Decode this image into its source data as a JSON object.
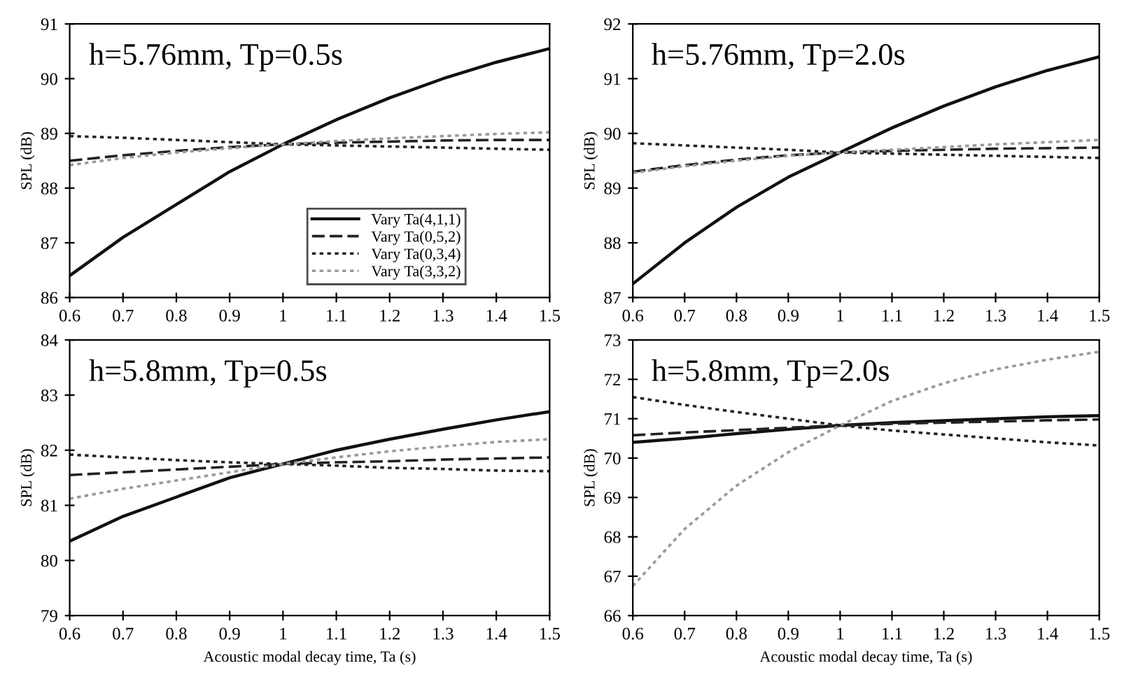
{
  "chart_data": [
    {
      "type": "line",
      "title": "h=5.76mm, Tp=0.5s",
      "ylabel": "SPL (dB)",
      "x": [
        0.6,
        0.7,
        0.8,
        0.9,
        1.0,
        1.1,
        1.2,
        1.3,
        1.4,
        1.5
      ],
      "xlim": [
        0.6,
        1.5
      ],
      "xticks": [
        0.6,
        0.7,
        0.8,
        0.9,
        1,
        1.1,
        1.2,
        1.3,
        1.4,
        1.5
      ],
      "ylim": [
        86,
        91
      ],
      "yticks": [
        86,
        87,
        88,
        89,
        90,
        91
      ],
      "grid": false,
      "legend": "bottom",
      "series": [
        {
          "name": "Vary Ta(4,1,1)",
          "color": "#111111",
          "line_style": "solid",
          "values": [
            86.4,
            87.1,
            87.7,
            88.3,
            88.8,
            89.25,
            89.65,
            90.0,
            90.3,
            90.55
          ]
        },
        {
          "name": "Vary Ta(0,5,2)",
          "color": "#222222",
          "line_style": "dashed",
          "values": [
            88.5,
            88.6,
            88.68,
            88.75,
            88.8,
            88.83,
            88.85,
            88.87,
            88.88,
            88.88
          ]
        },
        {
          "name": "Vary Ta(0,3,4)",
          "color": "#222222",
          "line_style": "dotted",
          "values": [
            88.95,
            88.92,
            88.88,
            88.84,
            88.8,
            88.78,
            88.76,
            88.74,
            88.72,
            88.7
          ]
        },
        {
          "name": "Vary Ta(3,3,2)",
          "color": "#999999",
          "line_style": "dotted",
          "values": [
            88.42,
            88.55,
            88.65,
            88.73,
            88.8,
            88.86,
            88.91,
            88.95,
            88.99,
            89.02
          ]
        }
      ]
    },
    {
      "type": "line",
      "title": "h=5.76mm, Tp=2.0s",
      "ylabel": "SPL (dB)",
      "x": [
        0.6,
        0.7,
        0.8,
        0.9,
        1.0,
        1.1,
        1.2,
        1.3,
        1.4,
        1.5
      ],
      "xlim": [
        0.6,
        1.5
      ],
      "xticks": [
        0.6,
        0.7,
        0.8,
        0.9,
        1,
        1.1,
        1.2,
        1.3,
        1.4,
        1.5
      ],
      "ylim": [
        87,
        92
      ],
      "yticks": [
        87,
        88,
        89,
        90,
        91,
        92
      ],
      "grid": false,
      "series": [
        {
          "color": "#111111",
          "line_style": "solid",
          "values": [
            87.25,
            88.0,
            88.65,
            89.2,
            89.65,
            90.1,
            90.5,
            90.85,
            91.15,
            91.4
          ]
        },
        {
          "color": "#222222",
          "line_style": "dashed",
          "values": [
            89.3,
            89.42,
            89.52,
            89.6,
            89.65,
            89.68,
            89.7,
            89.72,
            89.73,
            89.74
          ]
        },
        {
          "color": "#222222",
          "line_style": "dotted",
          "values": [
            89.82,
            89.78,
            89.74,
            89.7,
            89.65,
            89.63,
            89.61,
            89.59,
            89.57,
            89.55
          ]
        },
        {
          "color": "#999999",
          "line_style": "dotted",
          "values": [
            89.28,
            89.4,
            89.5,
            89.59,
            89.65,
            89.7,
            89.75,
            89.8,
            89.84,
            89.88
          ]
        }
      ]
    },
    {
      "type": "line",
      "title": "h=5.8mm, Tp=0.5s",
      "xlabel": "Acoustic modal decay time, Ta (s)",
      "ylabel": "SPL (dB)",
      "x": [
        0.6,
        0.7,
        0.8,
        0.9,
        1.0,
        1.1,
        1.2,
        1.3,
        1.4,
        1.5
      ],
      "xlim": [
        0.6,
        1.5
      ],
      "xticks": [
        0.6,
        0.7,
        0.8,
        0.9,
        1,
        1.1,
        1.2,
        1.3,
        1.4,
        1.5
      ],
      "ylim": [
        79,
        84
      ],
      "yticks": [
        79,
        80,
        81,
        82,
        83,
        84
      ],
      "grid": false,
      "series": [
        {
          "color": "#111111",
          "line_style": "solid",
          "values": [
            80.35,
            80.8,
            81.15,
            81.5,
            81.75,
            82.0,
            82.2,
            82.38,
            82.55,
            82.7
          ]
        },
        {
          "color": "#222222",
          "line_style": "dashed",
          "values": [
            81.55,
            81.6,
            81.65,
            81.7,
            81.75,
            81.78,
            81.8,
            81.83,
            81.85,
            81.87
          ]
        },
        {
          "color": "#222222",
          "line_style": "dotted",
          "values": [
            81.92,
            81.87,
            81.82,
            81.78,
            81.75,
            81.72,
            81.68,
            81.66,
            81.63,
            81.62
          ]
        },
        {
          "color": "#999999",
          "line_style": "dotted",
          "values": [
            81.12,
            81.3,
            81.45,
            81.6,
            81.75,
            81.87,
            81.98,
            82.07,
            82.15,
            82.2
          ]
        }
      ]
    },
    {
      "type": "line",
      "title": "h=5.8mm, Tp=2.0s",
      "xlabel": "Acoustic modal decay time, Ta (s)",
      "ylabel": "SPL (dB)",
      "x": [
        0.6,
        0.7,
        0.8,
        0.9,
        1.0,
        1.1,
        1.2,
        1.3,
        1.4,
        1.5
      ],
      "xlim": [
        0.6,
        1.5
      ],
      "xticks": [
        0.6,
        0.7,
        0.8,
        0.9,
        1,
        1.1,
        1.2,
        1.3,
        1.4,
        1.5
      ],
      "ylim": [
        66,
        73
      ],
      "yticks": [
        66,
        67,
        68,
        69,
        70,
        71,
        72,
        73
      ],
      "grid": false,
      "series": [
        {
          "color": "#111111",
          "line_style": "solid",
          "values": [
            70.4,
            70.5,
            70.62,
            70.73,
            70.83,
            70.9,
            70.95,
            71.0,
            71.05,
            71.08
          ]
        },
        {
          "color": "#222222",
          "line_style": "dashed",
          "values": [
            70.58,
            70.65,
            70.71,
            70.77,
            70.83,
            70.87,
            70.9,
            70.93,
            70.96,
            70.98
          ]
        },
        {
          "color": "#222222",
          "line_style": "dotted",
          "values": [
            71.55,
            71.35,
            71.17,
            71.0,
            70.83,
            70.7,
            70.6,
            70.5,
            70.4,
            70.32
          ]
        },
        {
          "color": "#999999",
          "line_style": "dotted",
          "values": [
            66.75,
            68.2,
            69.3,
            70.15,
            70.83,
            71.45,
            71.9,
            72.25,
            72.5,
            72.7
          ]
        }
      ]
    }
  ]
}
